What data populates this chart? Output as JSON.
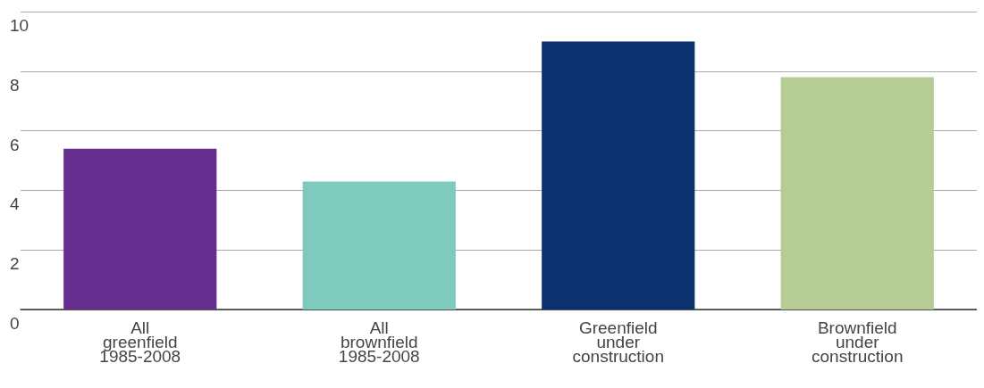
{
  "chart_data": {
    "type": "bar",
    "categories": [
      "All\ngreenfield\n1985-2008",
      "All\nbrownfield\n1985-2008",
      "Greenfield\nunder\nconstruction",
      "Brownfield\nunder\nconstruction"
    ],
    "values": [
      5.4,
      4.3,
      9.0,
      7.8
    ],
    "colors": [
      "#652d8e",
      "#7ecbbe",
      "#0b326e",
      "#b6cc95"
    ],
    "ylim": [
      0,
      10
    ],
    "yticks": [
      0,
      2,
      4,
      6,
      8,
      10
    ],
    "grid": "y"
  }
}
